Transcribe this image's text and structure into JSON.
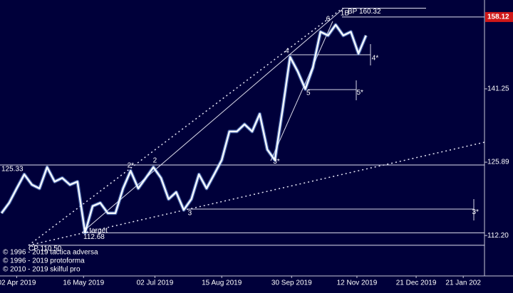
{
  "chart_data": {
    "type": "line",
    "ylog": true,
    "color": "#f2f8ff",
    "x": [
      "2019-03-23",
      "2019-03-28",
      "2019-04-02",
      "2019-04-07",
      "2019-04-12",
      "2019-04-17",
      "2019-04-22",
      "2019-04-27",
      "2019-05-02",
      "2019-05-07",
      "2019-05-12",
      "2019-05-17",
      "2019-05-22",
      "2019-05-27",
      "2019-06-01",
      "2019-06-06",
      "2019-06-11",
      "2019-06-16",
      "2019-06-21",
      "2019-06-26",
      "2019-07-01",
      "2019-07-06",
      "2019-07-11",
      "2019-07-16",
      "2019-07-21",
      "2019-07-26",
      "2019-07-31",
      "2019-08-05",
      "2019-08-10",
      "2019-08-15",
      "2019-08-20",
      "2019-08-25",
      "2019-08-30",
      "2019-09-04",
      "2019-09-09",
      "2019-09-14",
      "2019-09-19",
      "2019-09-24",
      "2019-09-29",
      "2019-10-04",
      "2019-10-09",
      "2019-10-14",
      "2019-10-19",
      "2019-10-24",
      "2019-10-29",
      "2019-11-03",
      "2019-11-08",
      "2019-11-13",
      "2019-11-18"
    ],
    "values": [
      116.2,
      118.1,
      120.8,
      123.5,
      121.5,
      120.8,
      124.9,
      122.1,
      122.8,
      121.5,
      122.1,
      112.7,
      117.5,
      118.1,
      116.2,
      116.2,
      120.8,
      124.2,
      120.8,
      122.8,
      124.9,
      122.8,
      118.8,
      120.1,
      116.8,
      118.8,
      123.5,
      120.8,
      123.5,
      126.3,
      132.1,
      132.1,
      133.6,
      132.1,
      135.8,
      128.4,
      126.3,
      136.6,
      148.5,
      145.2,
      141.2,
      146.0,
      154.5,
      153.6,
      156.2,
      153.6,
      154.5,
      149.3,
      153.6
    ],
    "xlim": [
      "2019-03-22",
      "2020-02-04"
    ],
    "xticks": [
      {
        "value": "2019-04-02",
        "label": "02 Apr 2019"
      },
      {
        "value": "2019-05-16",
        "label": "16 May 2019"
      },
      {
        "value": "2019-07-02",
        "label": "02 Jul 2019"
      },
      {
        "value": "2019-08-15",
        "label": "15 Aug 2019"
      },
      {
        "value": "2019-09-30",
        "label": "30 Sep 2019"
      },
      {
        "value": "2019-11-12",
        "label": "12 Nov 2019"
      },
      {
        "value": "2019-12-21",
        "label": "21 Dec 2019"
      },
      {
        "value": "2020-01-21",
        "label": "21 Jan 202"
      }
    ],
    "ylim": [
      105.3,
      162.4
    ],
    "yticks": [
      {
        "value": 112.2,
        "label": "112.20"
      },
      125.89,
      141.25
    ],
    "last_price": 158.12,
    "levels": [
      {
        "text": "BP 160.32",
        "value": 160.32
      },
      {
        "value": 125.33
      },
      {
        "text": "2 target",
        "value": 112.68
      },
      {
        "text": "CP 110.50",
        "value": 110.5
      }
    ],
    "wave_labels": [
      {
        "label": "6",
        "x": "2019-10-24",
        "y": 157.6
      },
      {
        "label": "1B",
        "x": "2019-11-04",
        "y": 159.0
      },
      {
        "label": "4",
        "x": "2019-09-27",
        "y": 149.9
      },
      {
        "label": "5",
        "x": "2019-10-11",
        "y": 140.3
      },
      {
        "label": "2*",
        "x": "2019-06-16",
        "y": 125.2
      },
      {
        "label": "2",
        "x": "2019-07-02",
        "y": 126.2
      },
      {
        "label": "3",
        "x": "2019-07-25",
        "y": 116.2
      },
      {
        "label": "3*",
        "x": "2019-09-20",
        "y": 126.0
      },
      {
        "label": "4*",
        "x": "2019-11-24",
        "y": 148.2
      },
      {
        "label": "5*",
        "x": "2019-11-14",
        "y": 140.4
      },
      {
        "label": "3*",
        "x": "2020-01-29",
        "y": 116.4
      }
    ],
    "copyright": [
      "© 1996 - 2019 tactica adversa",
      "© 1996 - 2019 protoforma",
      "© 2010 - 2019 skilful pro"
    ]
  }
}
